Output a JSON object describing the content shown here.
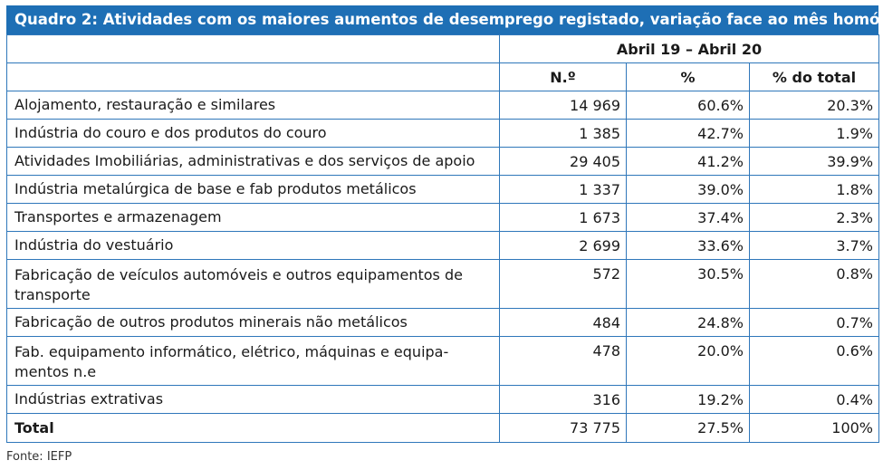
{
  "title": "Quadro 2: Atividades com os maiores aumentos de desemprego registado, variação face ao mês homólogo",
  "header": {
    "period": "Abril 19 – Abril 20",
    "col_n": "N.º",
    "col_pct": "%",
    "col_pct_total": "% do total"
  },
  "rows": [
    {
      "activity": "Alojamento, restauração e similares",
      "n": "14 969",
      "pct": "60.6%",
      "pct_total": "20.3%"
    },
    {
      "activity": "Indústria do couro e dos produtos do couro",
      "n": "1 385",
      "pct": "42.7%",
      "pct_total": "1.9%"
    },
    {
      "activity": "Atividades Imobiliárias, administrativas e dos serviços de apoio",
      "n": "29 405",
      "pct": "41.2%",
      "pct_total": "39.9%"
    },
    {
      "activity": "Indústria metalúrgica de base e fab produtos metálicos",
      "n": "1 337",
      "pct": "39.0%",
      "pct_total": "1.8%"
    },
    {
      "activity": "Transportes e armazenagem",
      "n": "1 673",
      "pct": "37.4%",
      "pct_total": "2.3%"
    },
    {
      "activity": "Indústria do vestuário",
      "n": "2 699",
      "pct": "33.6%",
      "pct_total": "3.7%"
    },
    {
      "activity": "Fabricação de veículos automóveis e outros equipamentos de transporte",
      "n": "572",
      "pct": "30.5%",
      "pct_total": "0.8%"
    },
    {
      "activity": "Fabricação de outros produtos minerais não metálicos",
      "n": "484",
      "pct": "24.8%",
      "pct_total": "0.7%"
    },
    {
      "activity": "Fab. equipamento informático, elétrico, máquinas e equipa-mentos n.e",
      "n": "478",
      "pct": "20.0%",
      "pct_total": "0.6%"
    },
    {
      "activity": "Indústrias extrativas",
      "n": "316",
      "pct": "19.2%",
      "pct_total": "0.4%"
    }
  ],
  "total": {
    "label": "Total",
    "n": "73 775",
    "pct": "27.5%",
    "pct_total": "100%"
  },
  "source": "Fonte: IEFP"
}
